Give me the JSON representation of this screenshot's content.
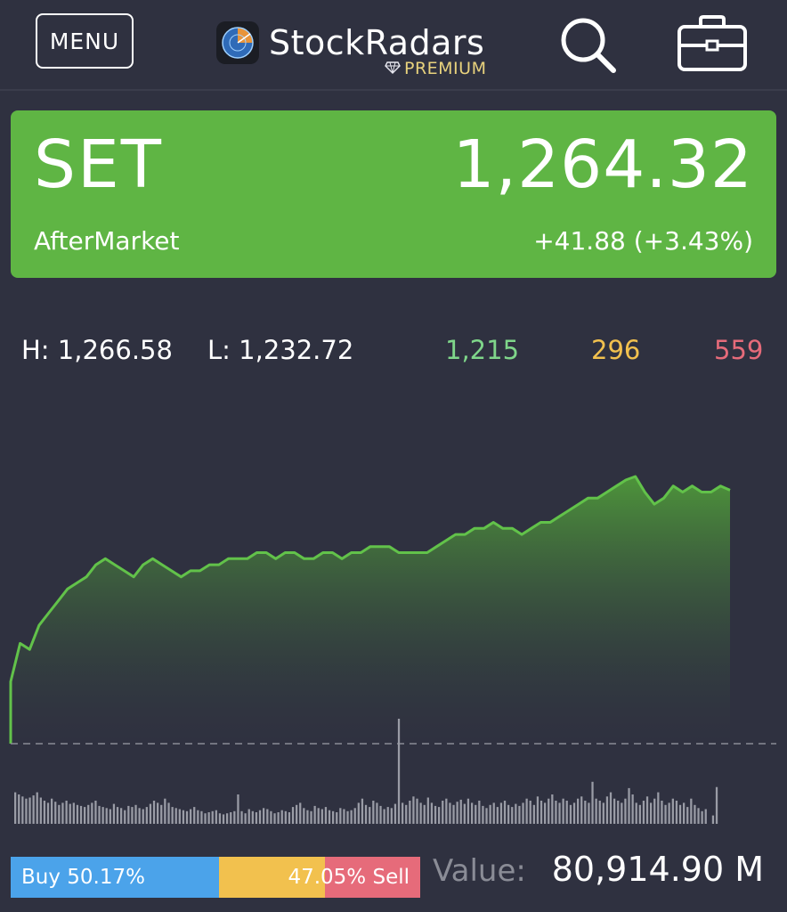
{
  "header": {
    "menu_label": "MENU",
    "brand_name": "StockRadars",
    "brand_tier": "PREMIUM",
    "icons": [
      "app-logo-icon",
      "diamond-icon",
      "search-icon",
      "briefcase-icon"
    ]
  },
  "index": {
    "name": "SET",
    "value": "1,264.32",
    "status": "AfterMarket",
    "change": "+41.88 (+3.43%)",
    "card_color": "#5fb544"
  },
  "stats": {
    "high": "H: 1,266.58",
    "low": "L: 1,232.72",
    "up_count": "1,215",
    "unchanged_count": "296",
    "down_count": "559",
    "colors": {
      "up": "#7fd68a",
      "unchanged": "#f2c14e",
      "down": "#e66b7a"
    }
  },
  "chart_data": {
    "type": "area",
    "series": [
      {
        "values": [
          1232.7,
          1239,
          1238,
          1242,
          1244,
          1246,
          1248,
          1249,
          1250,
          1252,
          1253,
          1252,
          1251,
          1250,
          1252,
          1253,
          1252,
          1251,
          1250,
          1251,
          1251,
          1252,
          1252,
          1253,
          1253,
          1253,
          1254,
          1254,
          1253,
          1254,
          1254,
          1253,
          1253,
          1254,
          1254,
          1253,
          1254,
          1254,
          1255,
          1255,
          1255,
          1254,
          1254,
          1254,
          1254,
          1255,
          1256,
          1257,
          1257,
          1258,
          1258,
          1259,
          1258,
          1258,
          1257,
          1258,
          1259,
          1259,
          1260,
          1261,
          1262,
          1263,
          1263,
          1264,
          1265,
          1266,
          1266.58,
          1264,
          1262,
          1263,
          1265,
          1264,
          1265,
          1264,
          1264,
          1265,
          1264.32
        ]
      }
    ],
    "baseline": 1222.44,
    "line_color": "#62c24a",
    "volume": [
      0.3,
      0.28,
      0.26,
      0.24,
      0.25,
      0.27,
      0.3,
      0.25,
      0.22,
      0.2,
      0.24,
      0.21,
      0.18,
      0.2,
      0.22,
      0.19,
      0.2,
      0.18,
      0.17,
      0.16,
      0.18,
      0.2,
      0.22,
      0.17,
      0.16,
      0.15,
      0.14,
      0.19,
      0.16,
      0.15,
      0.13,
      0.17,
      0.16,
      0.18,
      0.15,
      0.14,
      0.16,
      0.19,
      0.22,
      0.2,
      0.18,
      0.24,
      0.2,
      0.16,
      0.15,
      0.14,
      0.13,
      0.12,
      0.14,
      0.16,
      0.13,
      0.12,
      0.1,
      0.11,
      0.12,
      0.13,
      0.1,
      0.09,
      0.1,
      0.11,
      0.12,
      0.28,
      0.12,
      0.1,
      0.14,
      0.12,
      0.11,
      0.13,
      0.15,
      0.14,
      0.12,
      0.1,
      0.11,
      0.13,
      0.12,
      0.11,
      0.16,
      0.18,
      0.2,
      0.15,
      0.13,
      0.12,
      0.17,
      0.15,
      0.14,
      0.16,
      0.13,
      0.12,
      0.11,
      0.15,
      0.14,
      0.12,
      0.13,
      0.15,
      0.2,
      0.24,
      0.18,
      0.16,
      0.22,
      0.2,
      0.17,
      0.14,
      0.16,
      0.15,
      0.19,
      1.0,
      0.2,
      0.18,
      0.22,
      0.26,
      0.24,
      0.2,
      0.18,
      0.25,
      0.2,
      0.17,
      0.16,
      0.22,
      0.24,
      0.2,
      0.18,
      0.21,
      0.23,
      0.19,
      0.24,
      0.2,
      0.18,
      0.22,
      0.17,
      0.15,
      0.18,
      0.2,
      0.16,
      0.2,
      0.22,
      0.18,
      0.16,
      0.19,
      0.17,
      0.2,
      0.24,
      0.22,
      0.18,
      0.26,
      0.22,
      0.2,
      0.24,
      0.28,
      0.22,
      0.2,
      0.24,
      0.22,
      0.18,
      0.2,
      0.24,
      0.26,
      0.22,
      0.2,
      0.4,
      0.24,
      0.22,
      0.2,
      0.26,
      0.3,
      0.24,
      0.22,
      0.2,
      0.24,
      0.34,
      0.28,
      0.2,
      0.18,
      0.22,
      0.26,
      0.2,
      0.24,
      0.3,
      0.22,
      0.18,
      0.2,
      0.24,
      0.22,
      0.18,
      0.2,
      0.16,
      0.24,
      0.18,
      0.15,
      0.12,
      0.14,
      0.0,
      0.08,
      0.35
    ]
  },
  "buy_sell": {
    "buy_label": "Buy 50.17%",
    "sell_label": "47.05% Sell",
    "buy_pct": 50.17,
    "sell_pct": 47.05,
    "colors": {
      "buy": "#4ba3ea",
      "neutral": "#f2c14e",
      "sell": "#e66b7a"
    }
  },
  "market_value": {
    "label": "Value:",
    "amount": "80,914.90 M"
  }
}
